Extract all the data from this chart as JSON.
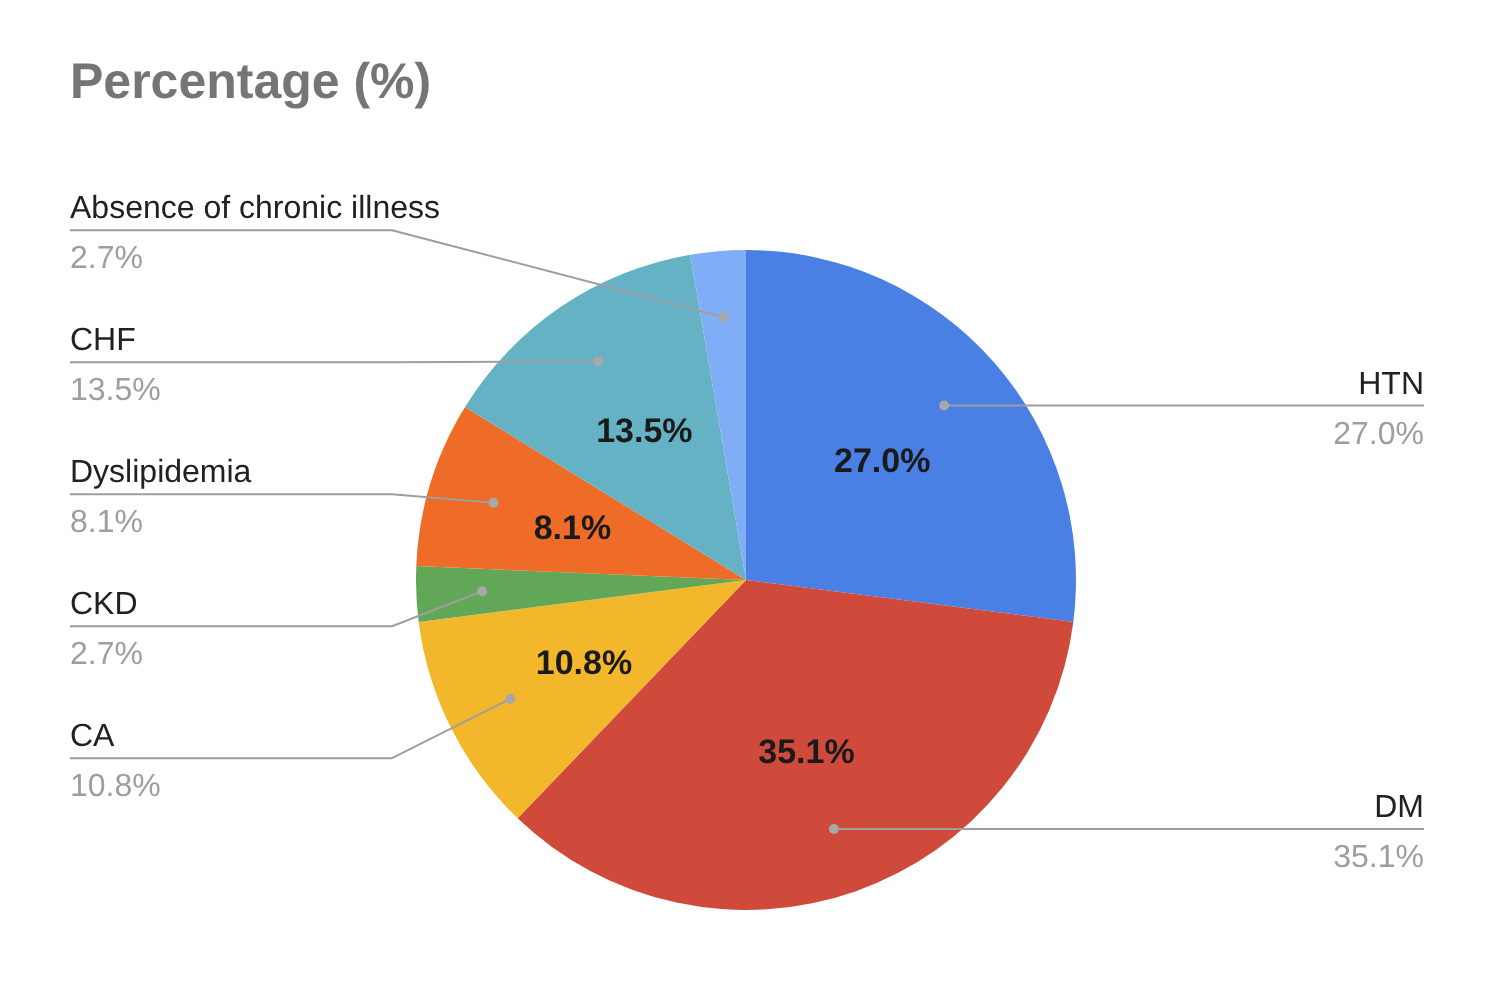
{
  "chart_data": {
    "type": "pie",
    "title": "Percentage (%)",
    "categories": [
      "HTN",
      "DM",
      "CA",
      "CKD",
      "Dyslipidemia",
      "CHF",
      "Absence of chronic illness"
    ],
    "values": [
      27.0,
      35.1,
      10.8,
      2.7,
      8.1,
      13.5,
      2.7
    ],
    "colors": [
      "#4a7fe4",
      "#cf4a3a",
      "#f3b72b",
      "#62a758",
      "#ee6b28",
      "#65b2c4",
      "#80aef6"
    ],
    "value_labels": [
      "27.0%",
      "35.1%",
      "10.8%",
      "2.7%",
      "8.1%",
      "13.5%",
      "2.7%"
    ]
  }
}
